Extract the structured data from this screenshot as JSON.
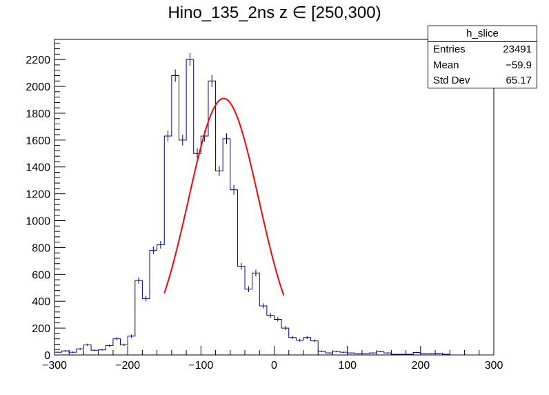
{
  "chart_data": {
    "type": "histogram",
    "title": "Hino_135_2ns z  ∈ [250,300)",
    "xlabel": "",
    "ylabel": "",
    "xlim": [
      -300,
      300
    ],
    "ylim": [
      0,
      2350
    ],
    "x_ticks": [
      "−300",
      "−200",
      "−100",
      "0",
      "100",
      "200",
      "300"
    ],
    "y_ticks": [
      "0",
      "200",
      "400",
      "600",
      "800",
      "1000",
      "1200",
      "1400",
      "1600",
      "1800",
      "2000",
      "2200"
    ],
    "bin_width": 10,
    "bin_edges_start": -300,
    "values": [
      20,
      30,
      20,
      45,
      75,
      35,
      38,
      70,
      120,
      75,
      140,
      555,
      420,
      780,
      820,
      1630,
      2080,
      1600,
      2200,
      1500,
      1630,
      2040,
      1370,
      1610,
      1230,
      660,
      490,
      610,
      365,
      295,
      265,
      200,
      130,
      110,
      130,
      105,
      28,
      15,
      25,
      20,
      15,
      10,
      10,
      15,
      25,
      15,
      5,
      5,
      5,
      18,
      10,
      10,
      12,
      5,
      0,
      0,
      0,
      0,
      0,
      0
    ],
    "fit": {
      "name": "gaus",
      "constant": 1910,
      "mean": -69,
      "sigma": 48,
      "x_range": [
        -150,
        13
      ],
      "color": "#ff0000"
    },
    "line_color": "#000099"
  },
  "statbox": {
    "name": "h_slice",
    "rows": [
      {
        "key": "Entries",
        "value": "23491"
      },
      {
        "key": "Mean",
        "value": "−59.9"
      },
      {
        "key": "Std Dev",
        "value": "65.17"
      }
    ]
  }
}
